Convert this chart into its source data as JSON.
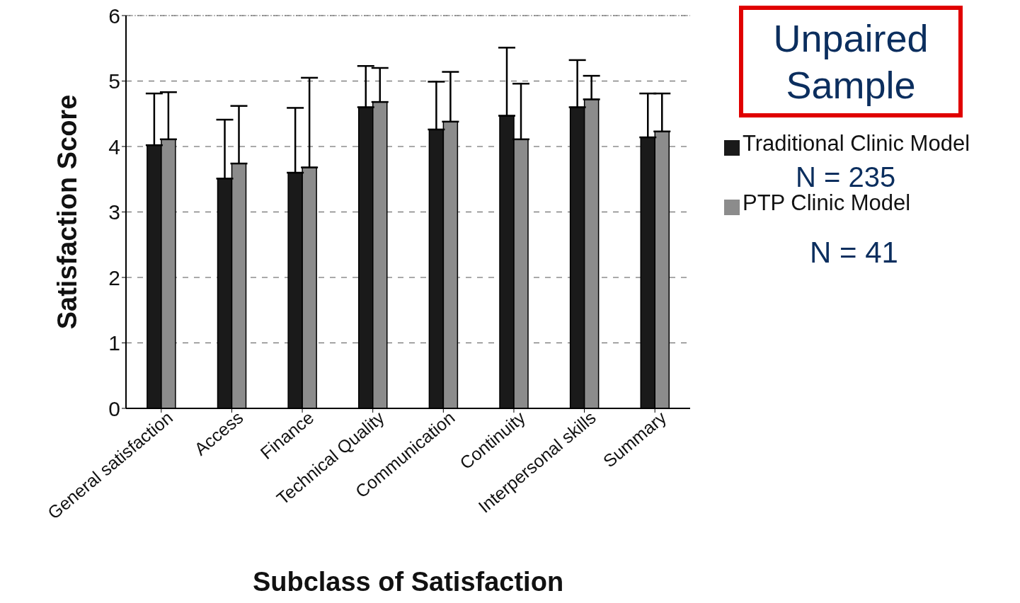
{
  "chart_data": {
    "type": "bar",
    "xlabel": "Subclass of Satisfaction",
    "ylabel": "Satisfaction Score",
    "categories": [
      "General satisfaction",
      "Access",
      "Finance",
      "Technical Quality",
      "Communication",
      "Continuity",
      "Interpersonal skills",
      "Summary"
    ],
    "series": [
      {
        "name": "Traditional Clinic Model",
        "color": "#1a1a1a",
        "values": [
          4.02,
          3.51,
          3.6,
          4.6,
          4.26,
          4.47,
          4.6,
          4.14
        ],
        "errors": [
          [
            4.02,
            4.81
          ],
          [
            3.51,
            4.41
          ],
          [
            3.6,
            4.59
          ],
          [
            4.6,
            5.23
          ],
          [
            4.26,
            4.99
          ],
          [
            4.47,
            5.51
          ],
          [
            4.6,
            5.32
          ],
          [
            4.14,
            4.81
          ]
        ]
      },
      {
        "name": "PTP Clinic Model",
        "color": "#8c8c8c",
        "values": [
          4.11,
          3.74,
          3.68,
          4.68,
          4.38,
          4.11,
          4.72,
          4.23
        ],
        "errors": [
          [
            4.11,
            4.83
          ],
          [
            3.74,
            4.62
          ],
          [
            3.68,
            5.05
          ],
          [
            4.68,
            5.2
          ],
          [
            4.38,
            5.14
          ],
          [
            4.11,
            4.96
          ],
          [
            4.72,
            5.08
          ],
          [
            4.23,
            4.81
          ]
        ]
      }
    ],
    "ylim": [
      0,
      6
    ],
    "yticks": [
      0,
      1,
      2,
      3,
      4,
      5,
      6
    ],
    "grid": "y",
    "legend": "right",
    "annotations": [
      "Unpaired Sample",
      "N = 235",
      "N = 41"
    ]
  }
}
